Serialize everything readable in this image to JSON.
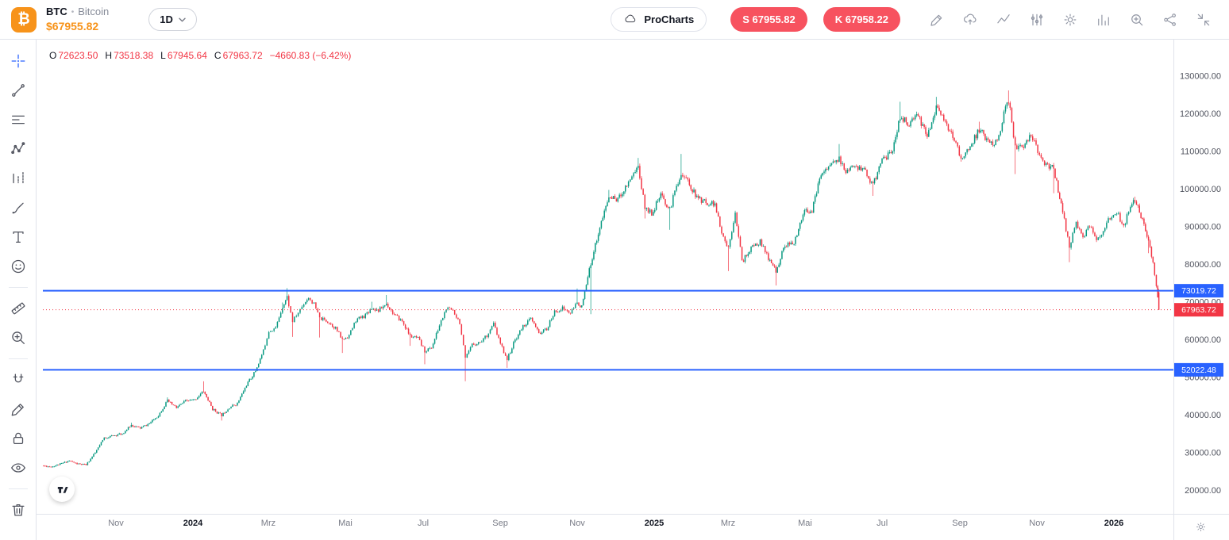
{
  "header": {
    "logo_symbol": "₿",
    "symbol": "BTC",
    "dot": "•",
    "name": "Bitcoin",
    "price": "$67955.82",
    "timeframe": "1D",
    "procharts_label": "ProCharts",
    "sell_button": "S 67955.82",
    "buy_button": "K 67958.22"
  },
  "legend": {
    "open_label": "O",
    "open": "72623.50",
    "high_label": "H",
    "high": "73518.38",
    "low_label": "L",
    "low": "67945.64",
    "close_label": "C",
    "close": "67963.72",
    "change": "−4660.83 (−6.42%)"
  },
  "left_toolbar": {
    "tools": [
      "crosshair",
      "trend-line",
      "horizontal-lines",
      "pattern",
      "forecast",
      "brush",
      "text",
      "emoji",
      "measure",
      "zoom",
      "magnet",
      "draw",
      "lock",
      "hide",
      "delete"
    ],
    "active_tool": "crosshair"
  },
  "top_toolbar": {
    "icons": [
      "edit",
      "cloud-upload",
      "curve-line",
      "sliders",
      "settings",
      "indicators",
      "zoom-in",
      "share",
      "collapse"
    ]
  },
  "chart_data": {
    "type": "candlestick",
    "title": "BTC / Bitcoin, 1D",
    "colors": {
      "up": "#089981",
      "down": "#f23645",
      "level": "#2962ff",
      "last": "#f23645"
    },
    "y_axis": {
      "price_top": 139684,
      "price_bottom": 13790,
      "ticks": [
        {
          "value": 130000,
          "label": "130000.00"
        },
        {
          "value": 120000,
          "label": "120000.00"
        },
        {
          "value": 110000,
          "label": "110000.00"
        },
        {
          "value": 100000,
          "label": "100000.00"
        },
        {
          "value": 90000,
          "label": "90000.00"
        },
        {
          "value": 80000,
          "label": "80000.00"
        },
        {
          "value": 70000,
          "label": "70000.00"
        },
        {
          "value": 60000,
          "label": "60000.00"
        },
        {
          "value": 50000,
          "label": "50000.00"
        },
        {
          "value": 40000,
          "label": "40000.00"
        },
        {
          "value": 30000,
          "label": "30000.00"
        },
        {
          "value": 20000,
          "label": "20000.00"
        }
      ]
    },
    "x_axis": {
      "labels": [
        {
          "text": "Nov",
          "f": 0.0647
        },
        {
          "text": "2024",
          "f": 0.1329,
          "year": true
        },
        {
          "text": "Mrz",
          "f": 0.1997
        },
        {
          "text": "Mai",
          "f": 0.2679
        },
        {
          "text": "Jul",
          "f": 0.3369
        },
        {
          "text": "Sep",
          "f": 0.4051
        },
        {
          "text": "Nov",
          "f": 0.4733
        },
        {
          "text": "2025",
          "f": 0.5415,
          "year": true
        },
        {
          "text": "Mrz",
          "f": 0.6069
        },
        {
          "text": "Mai",
          "f": 0.6751
        },
        {
          "text": "Jul",
          "f": 0.7434
        },
        {
          "text": "Sep",
          "f": 0.8123
        },
        {
          "text": "Nov",
          "f": 0.8805
        },
        {
          "text": "2026",
          "f": 0.9487,
          "year": true
        }
      ]
    },
    "levels": [
      {
        "value": 73019.72,
        "label": "73019.72"
      },
      {
        "value": 52022.48,
        "label": "52022.48"
      }
    ],
    "last_price": {
      "value": 67963.72,
      "label": "67963.72"
    },
    "last_candle": {
      "o": 72623.5,
      "h": 73518.38,
      "l": 67945.64,
      "c": 67963.72
    },
    "price_path": [
      [
        0.0,
        26600
      ],
      [
        0.008,
        26300
      ],
      [
        0.016,
        27000
      ],
      [
        0.024,
        27900
      ],
      [
        0.031,
        27050
      ],
      [
        0.039,
        26800
      ],
      [
        0.047,
        30000
      ],
      [
        0.055,
        33950
      ],
      [
        0.063,
        34550
      ],
      [
        0.071,
        35050
      ],
      [
        0.079,
        37350,
        38000
      ],
      [
        0.087,
        36550
      ],
      [
        0.095,
        37750
      ],
      [
        0.103,
        39950
      ],
      [
        0.111,
        43800,
        44700
      ],
      [
        0.119,
        41950
      ],
      [
        0.127,
        43750
      ],
      [
        0.135,
        44050
      ],
      [
        0.143,
        46350,
        48970
      ],
      [
        0.151,
        41600
      ],
      [
        0.159,
        39950,
        null,
        38550
      ],
      [
        0.166,
        42100
      ],
      [
        0.173,
        43100
      ],
      [
        0.181,
        48000
      ],
      [
        0.189,
        51750
      ],
      [
        0.196,
        57050
      ],
      [
        0.201,
        62400
      ],
      [
        0.207,
        63150
      ],
      [
        0.213,
        68900,
        69900
      ],
      [
        0.217,
        71400,
        73700
      ],
      [
        0.222,
        64900,
        null,
        60770
      ],
      [
        0.227,
        67200
      ],
      [
        0.232,
        69650
      ],
      [
        0.236,
        71300
      ],
      [
        0.241,
        69400
      ],
      [
        0.246,
        65700,
        null,
        60600
      ],
      [
        0.253,
        64900
      ],
      [
        0.26,
        63100
      ],
      [
        0.266,
        60000,
        null,
        56500
      ],
      [
        0.272,
        61200
      ],
      [
        0.278,
        65200
      ],
      [
        0.285,
        66300
      ],
      [
        0.292,
        68500,
        70100
      ],
      [
        0.298,
        67800
      ],
      [
        0.305,
        69600,
        71900
      ],
      [
        0.312,
        66600
      ],
      [
        0.319,
        64900
      ],
      [
        0.326,
        61000,
        null,
        58400
      ],
      [
        0.333,
        60300
      ],
      [
        0.339,
        57000,
        null,
        53500
      ],
      [
        0.345,
        57900
      ],
      [
        0.352,
        63800
      ],
      [
        0.358,
        68200
      ],
      [
        0.364,
        67900
      ],
      [
        0.37,
        64600
      ],
      [
        0.375,
        54900,
        null,
        49000
      ],
      [
        0.381,
        58700
      ],
      [
        0.388,
        59400
      ],
      [
        0.394,
        61200
      ],
      [
        0.4,
        64200
      ],
      [
        0.406,
        58900
      ],
      [
        0.412,
        54850,
        null,
        52550
      ],
      [
        0.419,
        60000
      ],
      [
        0.426,
        63600
      ],
      [
        0.433,
        65600
      ],
      [
        0.44,
        61700
      ],
      [
        0.447,
        62800
      ],
      [
        0.454,
        67400
      ],
      [
        0.461,
        68400
      ],
      [
        0.468,
        67050
      ],
      [
        0.474,
        69900,
        73600
      ],
      [
        0.478,
        68700
      ],
      [
        0.486,
        80400,
        null,
        66800
      ],
      [
        0.494,
        89900
      ],
      [
        0.502,
        97900,
        99800
      ],
      [
        0.51,
        97300
      ],
      [
        0.518,
        101200
      ],
      [
        0.524,
        104400
      ],
      [
        0.528,
        106000,
        108300
      ],
      [
        0.534,
        95100,
        null,
        92200
      ],
      [
        0.54,
        93700
      ],
      [
        0.548,
        98300
      ],
      [
        0.556,
        94500,
        null,
        89200
      ],
      [
        0.562,
        101000
      ],
      [
        0.566,
        104100,
        109350
      ],
      [
        0.572,
        102100
      ],
      [
        0.58,
        97700
      ],
      [
        0.588,
        96500
      ],
      [
        0.596,
        96100
      ],
      [
        0.602,
        88000
      ],
      [
        0.608,
        84350,
        null,
        78250
      ],
      [
        0.614,
        94250
      ],
      [
        0.62,
        80700
      ],
      [
        0.628,
        84350
      ],
      [
        0.636,
        86100
      ],
      [
        0.642,
        82400
      ],
      [
        0.65,
        78200,
        null,
        74420
      ],
      [
        0.658,
        85300
      ],
      [
        0.666,
        85200
      ],
      [
        0.674,
        93800
      ],
      [
        0.682,
        94300
      ],
      [
        0.69,
        104100
      ],
      [
        0.698,
        106450
      ],
      [
        0.706,
        107800,
        111980
      ],
      [
        0.712,
        104600
      ],
      [
        0.72,
        105700
      ],
      [
        0.728,
        105500
      ],
      [
        0.736,
        100900,
        null,
        98200
      ],
      [
        0.744,
        108300
      ],
      [
        0.752,
        109200
      ],
      [
        0.76,
        119100,
        123200
      ],
      [
        0.768,
        117300
      ],
      [
        0.776,
        119400
      ],
      [
        0.784,
        114200
      ],
      [
        0.792,
        121900,
        124500
      ],
      [
        0.8,
        117400
      ],
      [
        0.808,
        113000
      ],
      [
        0.814,
        108200,
        null,
        107300
      ],
      [
        0.822,
        111200
      ],
      [
        0.83,
        115900,
        117900
      ],
      [
        0.838,
        112600
      ],
      [
        0.846,
        112300
      ],
      [
        0.852,
        120100
      ],
      [
        0.856,
        123800,
        126200
      ],
      [
        0.862,
        111500,
        null,
        104000
      ],
      [
        0.868,
        110900
      ],
      [
        0.876,
        114200
      ],
      [
        0.882,
        110000
      ],
      [
        0.888,
        106600
      ],
      [
        0.896,
        105500,
        null,
        98900
      ],
      [
        0.904,
        94200
      ],
      [
        0.91,
        84600,
        null,
        80600
      ],
      [
        0.916,
        91300
      ],
      [
        0.922,
        87000
      ],
      [
        0.928,
        90500
      ],
      [
        0.934,
        86500
      ],
      [
        0.94,
        89000
      ],
      [
        0.946,
        92500
      ],
      [
        0.952,
        94000
      ],
      [
        0.958,
        90000
      ],
      [
        0.964,
        95500
      ],
      [
        0.968,
        96800,
        98000
      ],
      [
        0.972,
        94000
      ],
      [
        0.976,
        90500
      ],
      [
        0.98,
        86000,
        null,
        83000
      ],
      [
        0.984,
        80500
      ],
      [
        0.987,
        74500
      ],
      [
        0.989,
        67963.72
      ]
    ]
  }
}
